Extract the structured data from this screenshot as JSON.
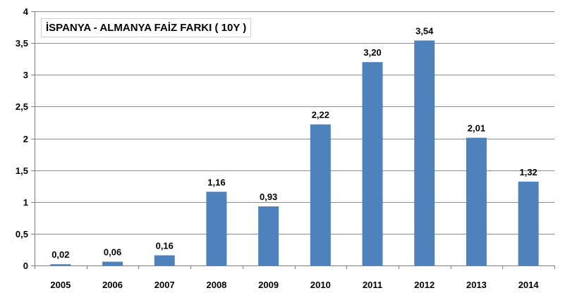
{
  "chart_data": {
    "type": "bar",
    "title": "İSPANYA - ALMANYA FAİZ FARKI ( 10Y )",
    "xlabel": "",
    "ylabel": "",
    "categories": [
      "2005",
      "2006",
      "2007",
      "2008",
      "2009",
      "2010",
      "2011",
      "2012",
      "2013",
      "2014"
    ],
    "values": [
      0.02,
      0.06,
      0.16,
      1.16,
      0.93,
      2.22,
      3.2,
      3.54,
      2.01,
      1.32
    ],
    "data_labels": [
      "0,02",
      "0,06",
      "0,16",
      "1,16",
      "0,93",
      "2,22",
      "3,20",
      "3,54",
      "2,01",
      "1,32"
    ],
    "ylim": [
      0,
      4
    ],
    "y_ticks": [
      0,
      0.5,
      1,
      1.5,
      2,
      2.5,
      3,
      3.5,
      4
    ],
    "y_tick_labels": [
      "0",
      "0,5",
      "1",
      "1,5",
      "2",
      "2,5",
      "3",
      "3,5",
      "4"
    ],
    "grid": true,
    "legend": "none",
    "colors": {
      "bar": "#4F81BD",
      "grid": "#8c8c8c",
      "axis": "#808080"
    }
  }
}
